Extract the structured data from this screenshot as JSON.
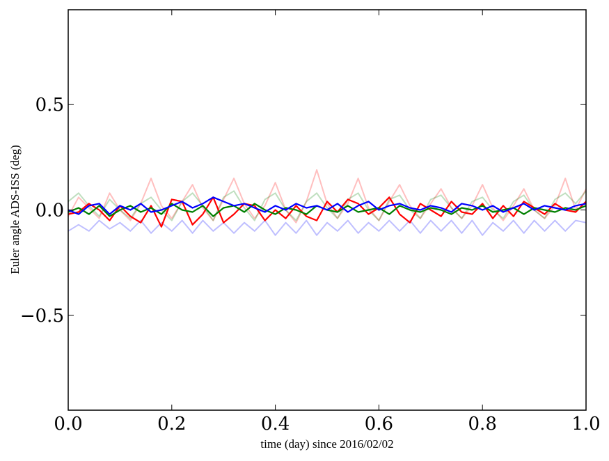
{
  "chart_data": {
    "type": "line",
    "xlabel": "time (day) since 2016/02/02",
    "ylabel": "Euler angle ADS-ISS (deg)",
    "xlim": [
      0.0,
      1.0
    ],
    "ylim": [
      -0.95,
      0.95
    ],
    "xticks": [
      0.0,
      0.2,
      0.4,
      0.6,
      0.8,
      1.0
    ],
    "xtick_labels": [
      "0.0",
      "0.2",
      "0.4",
      "0.6",
      "0.8",
      "1.0"
    ],
    "yticks": [
      -0.5,
      0.0,
      0.5
    ],
    "ytick_labels": [
      "−0.5",
      "0.0",
      "0.5"
    ],
    "grid": false,
    "legend": "none",
    "x": [
      0.0,
      0.02,
      0.04,
      0.06,
      0.08,
      0.1,
      0.12,
      0.14,
      0.16,
      0.18,
      0.2,
      0.22,
      0.24,
      0.26,
      0.28,
      0.3,
      0.32,
      0.34,
      0.36,
      0.38,
      0.4,
      0.42,
      0.44,
      0.46,
      0.48,
      0.5,
      0.52,
      0.54,
      0.56,
      0.58,
      0.6,
      0.62,
      0.64,
      0.66,
      0.68,
      0.7,
      0.72,
      0.74,
      0.76,
      0.78,
      0.8,
      0.82,
      0.84,
      0.86,
      0.88,
      0.9,
      0.92,
      0.94,
      0.96,
      0.98,
      1.0
    ],
    "series": [
      {
        "color": "#ff0000",
        "alpha": 0.25,
        "values": [
          -0.03,
          0.06,
          0.01,
          -0.04,
          0.08,
          0.0,
          -0.05,
          0.03,
          0.15,
          0.02,
          -0.04,
          0.04,
          0.12,
          0.01,
          -0.05,
          0.05,
          0.15,
          0.03,
          -0.04,
          0.02,
          0.13,
          0.0,
          -0.06,
          0.04,
          0.19,
          0.03,
          -0.04,
          0.03,
          0.15,
          0.01,
          -0.05,
          0.04,
          0.12,
          0.02,
          -0.04,
          0.03,
          0.1,
          0.01,
          -0.04,
          0.02,
          0.12,
          0.01,
          -0.05,
          0.02,
          0.1,
          0.0,
          -0.04,
          0.02,
          0.15,
          0.0,
          0.1
        ]
      },
      {
        "color": "#008000",
        "alpha": 0.25,
        "values": [
          0.04,
          0.08,
          0.02,
          -0.03,
          0.05,
          0.0,
          -0.04,
          0.03,
          0.06,
          0.0,
          -0.05,
          0.04,
          0.08,
          0.02,
          -0.05,
          0.06,
          0.09,
          0.01,
          -0.05,
          0.05,
          0.08,
          0.0,
          -0.05,
          0.04,
          0.08,
          0.01,
          -0.04,
          0.05,
          0.08,
          0.0,
          -0.05,
          0.05,
          0.07,
          0.0,
          -0.04,
          0.05,
          0.07,
          0.01,
          -0.04,
          0.04,
          0.06,
          0.0,
          -0.04,
          0.04,
          0.07,
          0.0,
          -0.04,
          0.05,
          0.08,
          0.03,
          0.09
        ]
      },
      {
        "color": "#0000ff",
        "alpha": 0.25,
        "values": [
          -0.1,
          -0.07,
          -0.1,
          -0.05,
          -0.09,
          -0.06,
          -0.1,
          -0.05,
          -0.11,
          -0.06,
          -0.1,
          -0.05,
          -0.11,
          -0.05,
          -0.1,
          -0.06,
          -0.11,
          -0.06,
          -0.1,
          -0.05,
          -0.12,
          -0.06,
          -0.11,
          -0.05,
          -0.12,
          -0.06,
          -0.1,
          -0.05,
          -0.11,
          -0.06,
          -0.1,
          -0.05,
          -0.1,
          -0.05,
          -0.11,
          -0.05,
          -0.1,
          -0.05,
          -0.11,
          -0.05,
          -0.12,
          -0.06,
          -0.1,
          -0.05,
          -0.11,
          -0.05,
          -0.1,
          -0.05,
          -0.1,
          -0.05,
          -0.06
        ]
      },
      {
        "color": "#ff0000",
        "alpha": 1.0,
        "values": [
          -0.02,
          -0.01,
          0.03,
          0.0,
          -0.05,
          0.02,
          -0.03,
          -0.06,
          0.02,
          -0.08,
          0.05,
          0.04,
          -0.07,
          -0.02,
          0.06,
          -0.06,
          -0.02,
          0.03,
          0.02,
          -0.05,
          0.0,
          -0.04,
          0.02,
          -0.03,
          -0.05,
          0.04,
          -0.01,
          0.05,
          0.03,
          -0.02,
          0.01,
          0.06,
          -0.02,
          -0.06,
          0.03,
          0.0,
          -0.03,
          0.04,
          -0.01,
          -0.02,
          0.03,
          -0.04,
          0.02,
          -0.03,
          0.04,
          0.01,
          -0.02,
          0.03,
          0.0,
          -0.01,
          0.04
        ]
      },
      {
        "color": "#008000",
        "alpha": 1.0,
        "values": [
          -0.01,
          0.01,
          -0.02,
          0.02,
          -0.03,
          0.0,
          0.02,
          -0.01,
          0.01,
          -0.02,
          0.03,
          0.0,
          -0.01,
          0.02,
          -0.03,
          0.01,
          0.02,
          -0.01,
          0.03,
          0.0,
          -0.02,
          0.01,
          0.0,
          -0.02,
          0.02,
          0.0,
          -0.01,
          0.02,
          -0.01,
          0.0,
          0.01,
          -0.02,
          0.02,
          0.0,
          -0.01,
          0.01,
          0.0,
          -0.02,
          0.01,
          0.0,
          0.02,
          -0.01,
          0.0,
          0.01,
          -0.02,
          0.01,
          0.0,
          -0.01,
          0.01,
          0.0,
          0.02
        ]
      },
      {
        "color": "#0000ff",
        "alpha": 1.0,
        "values": [
          0.0,
          -0.02,
          0.02,
          0.03,
          -0.02,
          0.02,
          0.0,
          0.03,
          -0.01,
          0.0,
          0.02,
          0.04,
          0.01,
          0.03,
          0.06,
          0.04,
          0.02,
          0.03,
          0.01,
          -0.01,
          0.02,
          0.0,
          0.03,
          0.01,
          0.02,
          0.0,
          0.03,
          -0.01,
          0.02,
          0.04,
          0.0,
          0.02,
          0.03,
          0.01,
          0.0,
          0.02,
          0.01,
          -0.01,
          0.03,
          0.02,
          0.0,
          0.02,
          -0.01,
          0.01,
          0.03,
          0.0,
          0.02,
          0.01,
          0.0,
          0.02,
          0.03
        ]
      }
    ]
  }
}
